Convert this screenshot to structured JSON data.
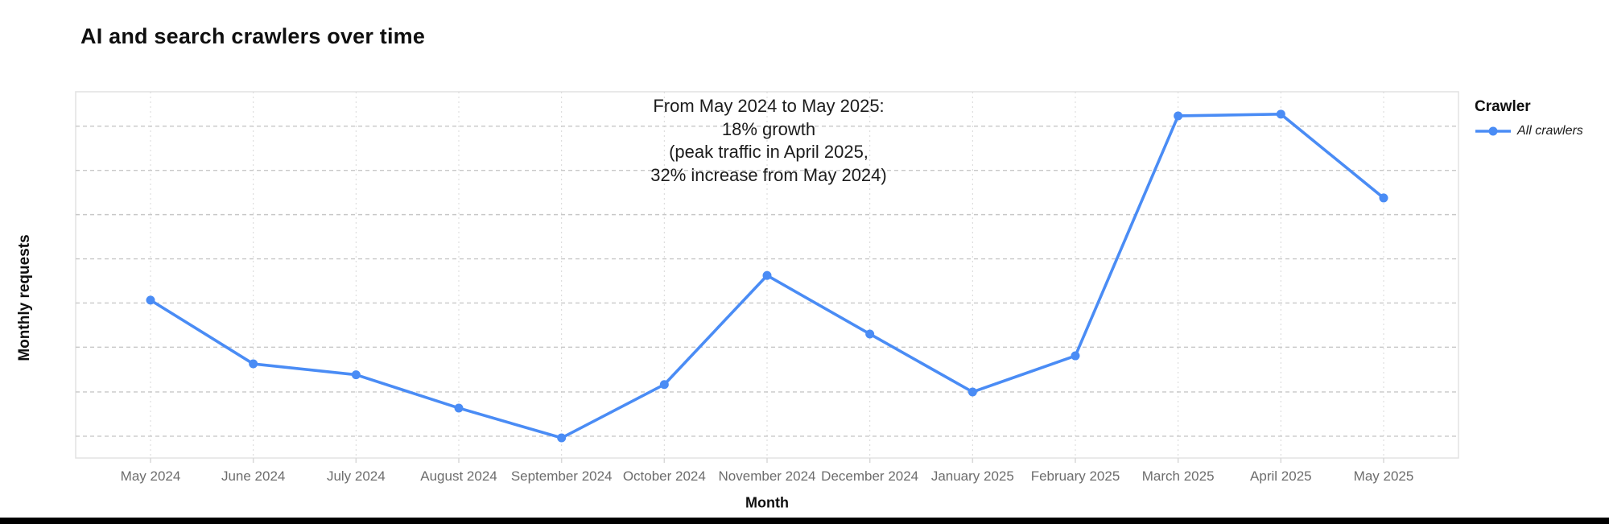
{
  "chart_data": {
    "type": "line",
    "title": "AI and search crawlers over time",
    "xlabel": "Month",
    "ylabel": "Monthly requests",
    "categories": [
      "May 2024",
      "June 2024",
      "July 2024",
      "August 2024",
      "September 2024",
      "October 2024",
      "November 2024",
      "December 2024",
      "January 2025",
      "February 2025",
      "March 2025",
      "April 2025",
      "May 2025"
    ],
    "series": [
      {
        "name": "All crawlers",
        "color": "#4a8cf5",
        "values": [
          100,
          88.9,
          87.0,
          81.2,
          76.0,
          85.3,
          104.3,
          94.1,
          84.0,
          90.3,
          132.1,
          132.4,
          117.8
        ]
      }
    ],
    "value_units": "relative index, May 2024 = 100 (y axis has no tick labels)",
    "ylim": [
      72.5,
      136.3
    ],
    "y_gridlines": [
      76.3,
      84.0,
      91.8,
      99.5,
      107.2,
      114.9,
      122.6,
      130.3
    ],
    "grid": "dashed, vertical gridline per month",
    "legend_position": "top-right outside plot",
    "annotation_lines": [
      "From May 2024 to May 2025:",
      "18% growth",
      "(peak traffic in April 2025,",
      "32% increase from May 2024)"
    ],
    "legend": {
      "title": "Crawler",
      "items": [
        {
          "label": "All crawlers",
          "color": "#4a8cf5"
        }
      ]
    }
  },
  "colors": {
    "accent_blue": "#4a8cf5",
    "plot_border": "#e2e2e2",
    "grid_horizontal": "#c8c8c8",
    "grid_vertical": "#d8d8d8",
    "axis_label": "#6d6d6d",
    "heading_text": "#0f0f0f",
    "annotation_text": "#1c1c1c",
    "bottom_bar": "#000000"
  }
}
